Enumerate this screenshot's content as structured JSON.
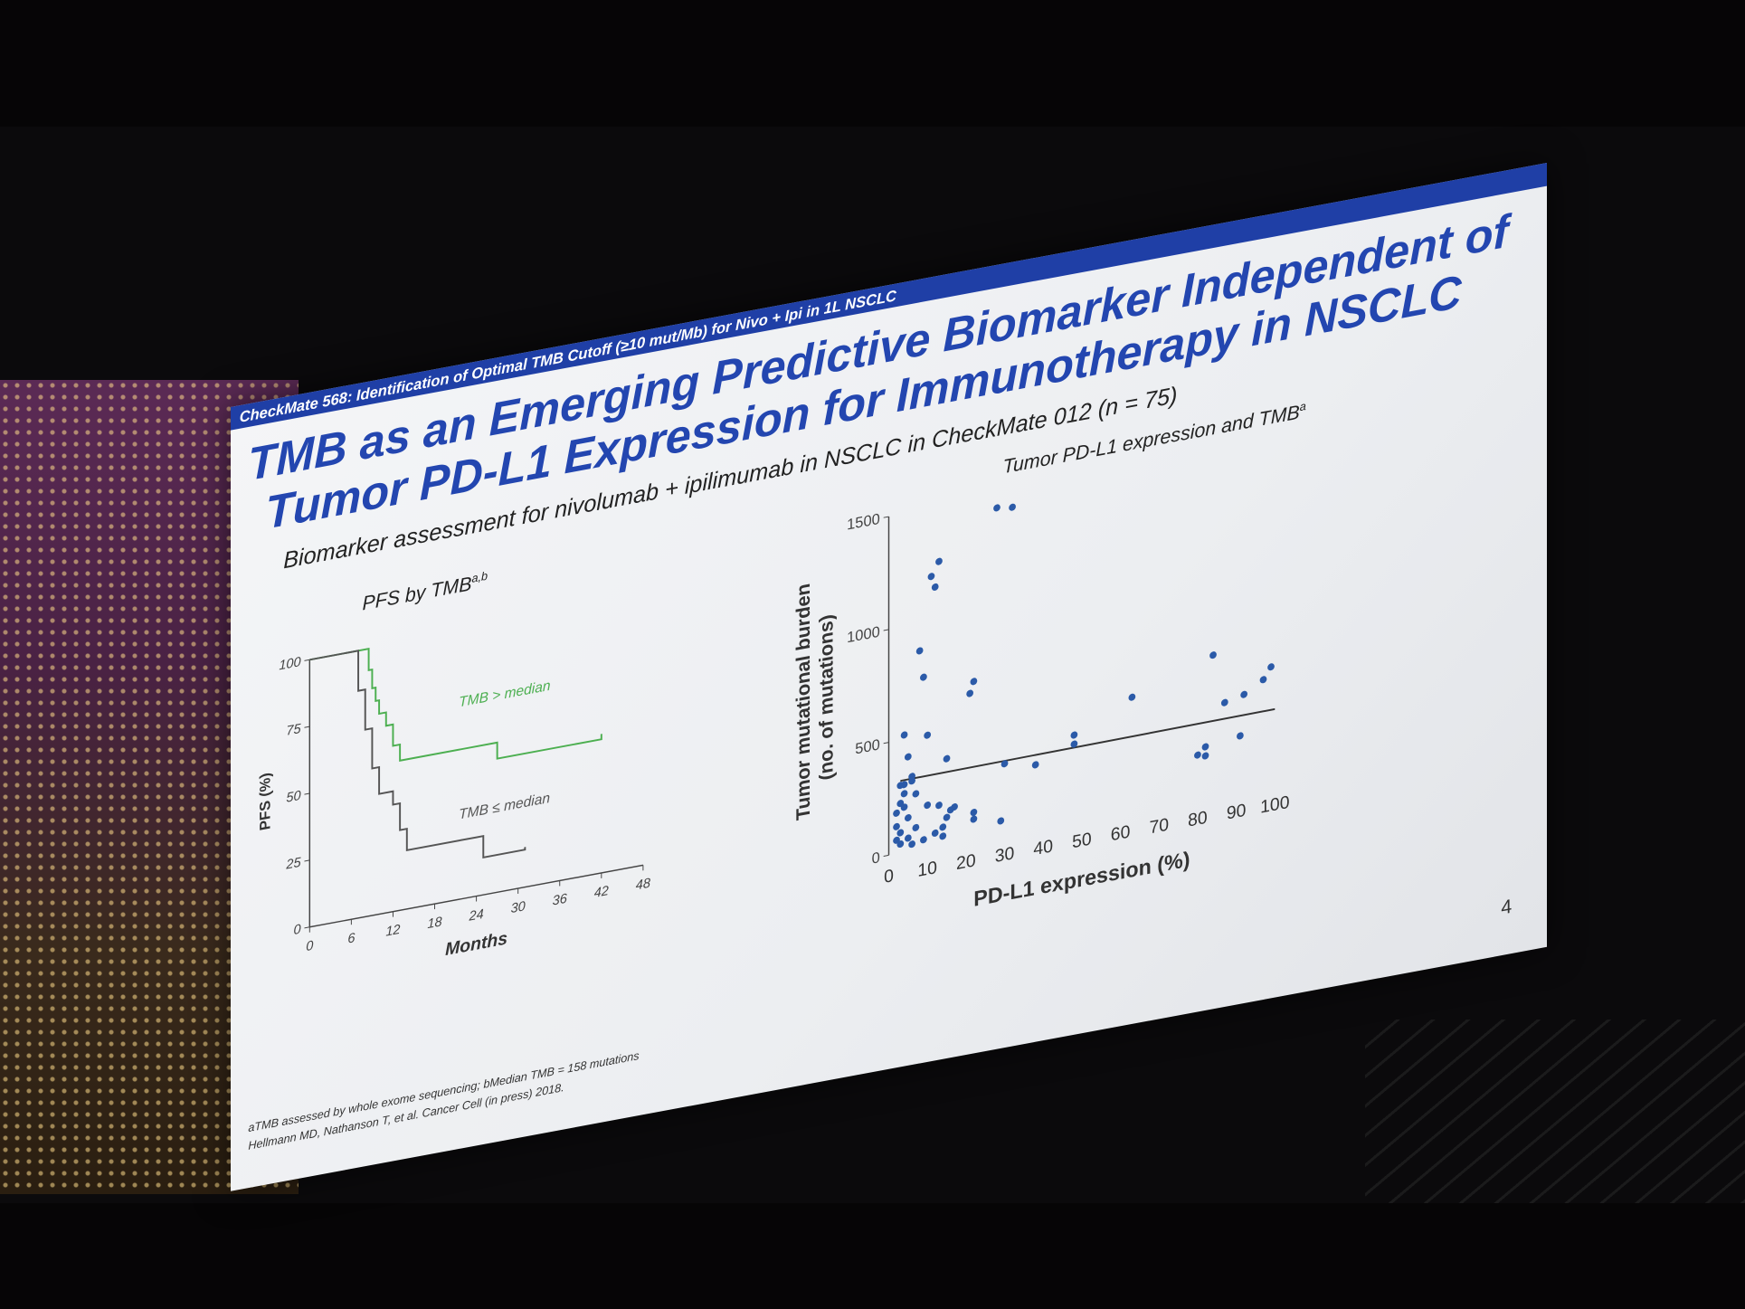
{
  "slide": {
    "header": "CheckMate 568: Identification of Optimal TMB Cutoff (≥10 mut/Mb) for Nivo + Ipi in 1L NSCLC",
    "title_line1": "TMB as an Emerging Predictive Biomarker Independent of",
    "title_line2": "Tumor PD-L1 Expression for Immunotherapy in NSCLC",
    "subtitle": "Biomarker assessment for nivolumab + ipilimumab in NSCLC in CheckMate 012 (n = 75)",
    "left_panel_title": "PFS by TMBa,b",
    "right_panel_title": "Tumor PD-L1 expression and TMBa",
    "footnote_1": "aTMB assessed by whole exome sequencing; bMedian TMB = 158 mutations",
    "footnote_2": "Hellmann MD, Nathanson T, et al. Cancer Cell (in press) 2018.",
    "page_number": "4"
  },
  "chart_data": [
    {
      "type": "line",
      "title": "PFS by TMBa,b",
      "xlabel": "Months",
      "ylabel": "PFS (%)",
      "xlim": [
        0,
        48
      ],
      "ylim": [
        0,
        100
      ],
      "xticks": [
        "0",
        "6",
        "12",
        "18",
        "24",
        "30",
        "36",
        "42",
        "48"
      ],
      "yticks": [
        "0",
        "25",
        "50",
        "75",
        "100"
      ],
      "series": [
        {
          "name": "TMB > median",
          "color": "#4caf50",
          "x": [
            0,
            8,
            8.5,
            9,
            9.5,
            10,
            11,
            12,
            13,
            26,
            27,
            42
          ],
          "y": [
            100,
            100,
            92,
            85,
            80,
            75,
            70,
            62,
            56,
            56,
            50,
            52
          ]
        },
        {
          "name": "TMB ≤ median",
          "color": "#555555",
          "x": [
            0,
            6,
            7,
            8,
            9,
            10,
            12,
            13,
            14,
            24,
            25,
            31
          ],
          "y": [
            100,
            100,
            85,
            70,
            55,
            45,
            40,
            30,
            22,
            22,
            14,
            15
          ]
        }
      ]
    },
    {
      "type": "scatter",
      "title": "Tumor PD-L1 expression and TMBa",
      "xlabel": "PD-L1 expression (%)",
      "ylabel": "Tumor mutational burden (no. of mutations)",
      "xlim": [
        0,
        100
      ],
      "ylim": [
        0,
        1500
      ],
      "xticks": [
        "0",
        "10",
        "20",
        "30",
        "40",
        "50",
        "60",
        "70",
        "80",
        "90",
        "100"
      ],
      "yticks": [
        "0",
        "500",
        "1000",
        "1500"
      ],
      "color": "#2b5aa8",
      "trend": {
        "x": [
          3,
          100
        ],
        "y": [
          320,
          330
        ]
      },
      "points": [
        [
          2,
          60
        ],
        [
          2,
          120
        ],
        [
          2,
          180
        ],
        [
          3,
          220
        ],
        [
          3,
          90
        ],
        [
          3,
          40
        ],
        [
          4,
          300
        ],
        [
          4,
          260
        ],
        [
          5,
          150
        ],
        [
          4,
          520
        ],
        [
          5,
          420
        ],
        [
          6,
          310
        ],
        [
          6,
          330
        ],
        [
          7,
          250
        ],
        [
          8,
          880
        ],
        [
          9,
          760
        ],
        [
          10,
          190
        ],
        [
          10,
          500
        ],
        [
          11,
          1200
        ],
        [
          12,
          1150
        ],
        [
          13,
          1260
        ],
        [
          13,
          180
        ],
        [
          14,
          80
        ],
        [
          15,
          120
        ],
        [
          15,
          380
        ],
        [
          16,
          150
        ],
        [
          17,
          160
        ],
        [
          21,
          650
        ],
        [
          22,
          700
        ],
        [
          22,
          120
        ],
        [
          22,
          90
        ],
        [
          28,
          1450
        ],
        [
          29,
          60
        ],
        [
          30,
          310
        ],
        [
          32,
          1440
        ],
        [
          38,
          280
        ],
        [
          48,
          340
        ],
        [
          48,
          380
        ],
        [
          63,
          500
        ],
        [
          80,
          190
        ],
        [
          82,
          220
        ],
        [
          82,
          180
        ],
        [
          84,
          620
        ],
        [
          87,
          400
        ],
        [
          91,
          240
        ],
        [
          92,
          420
        ],
        [
          97,
          470
        ],
        [
          99,
          520
        ],
        [
          5,
          60
        ],
        [
          6,
          30
        ],
        [
          7,
          100
        ],
        [
          3,
          300
        ],
        [
          4,
          200
        ],
        [
          12,
          60
        ],
        [
          14,
          40
        ],
        [
          9,
          40
        ]
      ]
    }
  ]
}
